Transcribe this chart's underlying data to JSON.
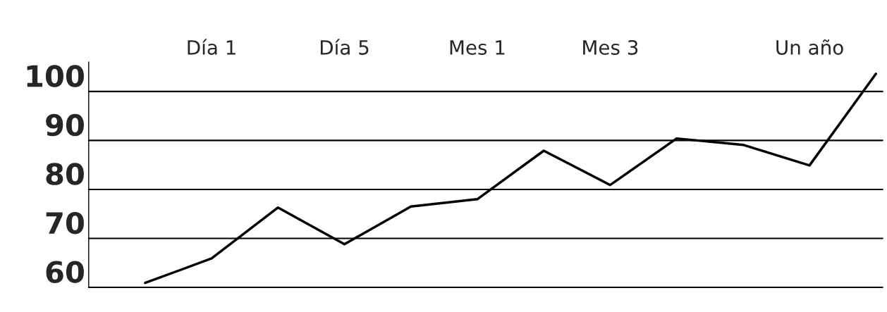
{
  "chart_data": {
    "type": "line",
    "categories": [
      null,
      "Día 1",
      null,
      "Día 5",
      null,
      "Mes 1",
      null,
      "Mes 3",
      null,
      null,
      "Un año",
      null
    ],
    "series": [
      {
        "color": "#000000",
        "values": [
          60.9,
          65.9,
          76.3,
          68.8,
          76.5,
          78.0,
          87.9,
          80.9,
          90.4,
          89.1,
          84.9,
          103.6
        ]
      }
    ],
    "ylim": [
      60,
      106
    ],
    "yticks": [
      60,
      70,
      80,
      90,
      100
    ],
    "grid": "y",
    "marker": "none",
    "line_style": "solid"
  }
}
